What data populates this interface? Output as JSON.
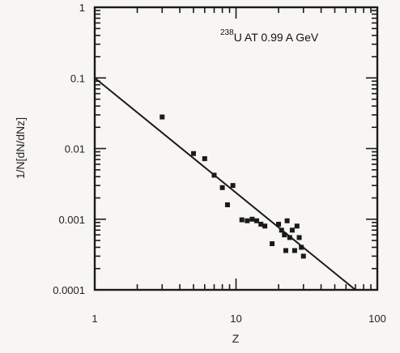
{
  "chart_data": {
    "type": "scatter",
    "title": "",
    "annotation": {
      "superscript": "238",
      "text": "U AT 0.99 A GeV"
    },
    "xlabel": "Z",
    "ylabel": "1/N[dN/dNz]",
    "xscale": "log",
    "yscale": "log",
    "xlim": [
      1,
      100
    ],
    "ylim": [
      0.0001,
      1
    ],
    "x_ticks": [
      {
        "value": 1,
        "label": "1"
      },
      {
        "value": 10,
        "label": "10"
      },
      {
        "value": 100,
        "label": "100"
      }
    ],
    "y_ticks": [
      {
        "value": 0.0001,
        "label": "0.0001"
      },
      {
        "value": 0.001,
        "label": "0.001"
      },
      {
        "value": 0.01,
        "label": "0.01"
      },
      {
        "value": 0.1,
        "label": "0.1"
      },
      {
        "value": 1,
        "label": "1"
      }
    ],
    "grid": false,
    "points": [
      {
        "x": 3.0,
        "y": 0.028
      },
      {
        "x": 5.0,
        "y": 0.0085
      },
      {
        "x": 6.0,
        "y": 0.0072
      },
      {
        "x": 7.0,
        "y": 0.0042
      },
      {
        "x": 8.0,
        "y": 0.0028
      },
      {
        "x": 8.7,
        "y": 0.0016
      },
      {
        "x": 9.5,
        "y": 0.003
      },
      {
        "x": 11.0,
        "y": 0.00098
      },
      {
        "x": 12.0,
        "y": 0.00095
      },
      {
        "x": 13.0,
        "y": 0.001
      },
      {
        "x": 14.0,
        "y": 0.00095
      },
      {
        "x": 15.0,
        "y": 0.00085
      },
      {
        "x": 16.0,
        "y": 0.0008
      },
      {
        "x": 18.0,
        "y": 0.00045
      },
      {
        "x": 20.0,
        "y": 0.00085
      },
      {
        "x": 21.0,
        "y": 0.0007
      },
      {
        "x": 22.0,
        "y": 0.0006
      },
      {
        "x": 22.5,
        "y": 0.00036
      },
      {
        "x": 23.0,
        "y": 0.00095
      },
      {
        "x": 24.0,
        "y": 0.00055
      },
      {
        "x": 25.0,
        "y": 0.0007
      },
      {
        "x": 26.0,
        "y": 0.00036
      },
      {
        "x": 27.0,
        "y": 0.0008
      },
      {
        "x": 28.0,
        "y": 0.00055
      },
      {
        "x": 29.0,
        "y": 0.0004
      },
      {
        "x": 30.0,
        "y": 0.0003
      }
    ],
    "fit_line": {
      "x": [
        1,
        70
      ],
      "y": [
        0.1,
        0.0001
      ]
    },
    "colors": {
      "ink": "#1a1a1a",
      "background": "#f7f6f2"
    }
  }
}
